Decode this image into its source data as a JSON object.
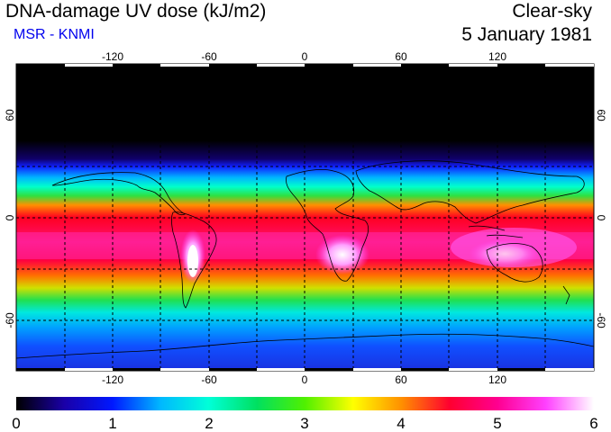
{
  "header": {
    "title": "DNA-damage UV dose (kJ/m2)",
    "source": "MSR - KNMI",
    "condition": "Clear-sky",
    "date": "5 January 1981"
  },
  "map": {
    "lon_ticks": [
      "-120",
      "-60",
      "0",
      "60",
      "120"
    ],
    "lat_ticks": [
      "60",
      "0",
      "-60"
    ],
    "lon_range": [
      -180,
      180
    ],
    "lat_range": [
      -90,
      90
    ]
  },
  "colorbar": {
    "labels": [
      "0",
      "1",
      "2",
      "3",
      "4",
      "5",
      "6"
    ],
    "stops": [
      "#000000",
      "#1a00a8",
      "#0018ff",
      "#00b8ff",
      "#00ffd8",
      "#00e060",
      "#50f000",
      "#ffff00",
      "#ff9000",
      "#ff0030",
      "#ff0090",
      "#ff40ff",
      "#ffffff"
    ]
  }
}
